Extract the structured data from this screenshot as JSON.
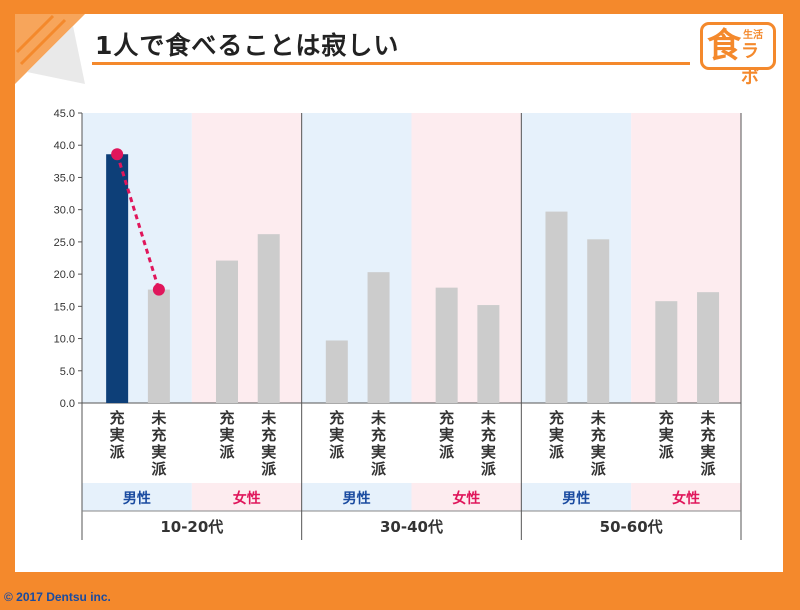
{
  "title": "1人で食べることは寂しい",
  "logo": {
    "main": "食",
    "sub": "生活",
    "lab": "ラボ"
  },
  "copyright": "© 2017 Dentsu inc.",
  "colors": {
    "accent": "#f4892c",
    "highlight_bar": "#0d3f78",
    "bar": "#cccccc",
    "male_bg": "#e6f1fb",
    "female_bg": "#fdecef",
    "male_text": "#1a4ba0",
    "female_text": "#e0165b",
    "dot": "#e0165b"
  },
  "chart_data": {
    "type": "bar",
    "ylim": [
      0,
      45
    ],
    "yticks": [
      "0.0",
      "5.0",
      "10.0",
      "15.0",
      "20.0",
      "25.0",
      "30.0",
      "35.0",
      "40.0",
      "45.0"
    ],
    "age_groups": [
      {
        "label": "10-20代",
        "genders": [
          {
            "label": "男性",
            "bars": [
              {
                "label": "充実派",
                "value": 38.6,
                "highlight": true
              },
              {
                "label": "未充実派",
                "value": 17.6,
                "highlight": false
              }
            ]
          },
          {
            "label": "女性",
            "bars": [
              {
                "label": "充実派",
                "value": 22.1,
                "highlight": false
              },
              {
                "label": "未充実派",
                "value": 26.2,
                "highlight": false
              }
            ]
          }
        ]
      },
      {
        "label": "30-40代",
        "genders": [
          {
            "label": "男性",
            "bars": [
              {
                "label": "充実派",
                "value": 9.7,
                "highlight": false
              },
              {
                "label": "未充実派",
                "value": 20.3,
                "highlight": false
              }
            ]
          },
          {
            "label": "女性",
            "bars": [
              {
                "label": "充実派",
                "value": 17.9,
                "highlight": false
              },
              {
                "label": "未充実派",
                "value": 15.2,
                "highlight": false
              }
            ]
          }
        ]
      },
      {
        "label": "50-60代",
        "genders": [
          {
            "label": "男性",
            "bars": [
              {
                "label": "充実派",
                "value": 29.7,
                "highlight": false
              },
              {
                "label": "未充実派",
                "value": 25.4,
                "highlight": false
              }
            ]
          },
          {
            "label": "女性",
            "bars": [
              {
                "label": "充実派",
                "value": 15.8,
                "highlight": false
              },
              {
                "label": "未充実派",
                "value": 17.2,
                "highlight": false
              }
            ]
          }
        ]
      }
    ],
    "comparison_line": {
      "from": 38.6,
      "to": 17.6
    }
  }
}
